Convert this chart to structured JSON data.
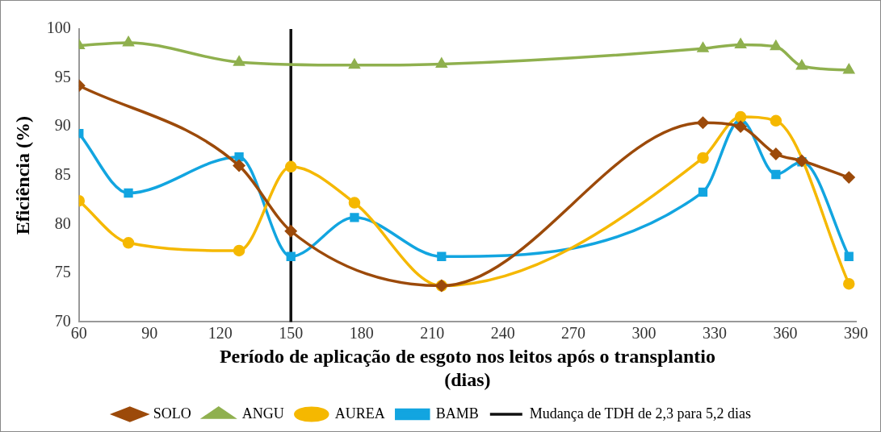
{
  "chart_data": {
    "type": "line",
    "xlabel": "Período de aplicação de esgoto nos leitos após o transplantio (dias)",
    "ylabel": "Eficiência (%)",
    "xlim": [
      60,
      390
    ],
    "xticks": [
      60,
      90,
      120,
      150,
      180,
      210,
      240,
      270,
      300,
      330,
      360,
      390
    ],
    "ylim": [
      70,
      100
    ],
    "yticks": [
      70,
      75,
      80,
      85,
      90,
      95,
      100
    ],
    "grid": false,
    "legend": "bottom",
    "series": [
      {
        "name": "SOLO",
        "color": "#9c4a0a",
        "marker": "diamond",
        "x": [
          60,
          128,
          150,
          214,
          325,
          341,
          356,
          367,
          387
        ],
        "values": [
          94.2,
          86.0,
          79.3,
          73.7,
          90.4,
          90.0,
          87.2,
          86.5,
          84.8
        ]
      },
      {
        "name": "ANGU",
        "color": "#8fb04e",
        "marker": "triangle",
        "x": [
          60,
          81,
          128,
          177,
          214,
          325,
          341,
          356,
          367,
          387
        ],
        "values": [
          98.3,
          98.6,
          96.6,
          96.3,
          96.4,
          98.0,
          98.4,
          98.2,
          96.2,
          95.8
        ]
      },
      {
        "name": "AUREA",
        "color": "#f5b800",
        "marker": "circle",
        "x": [
          60,
          81,
          128,
          150,
          177,
          214,
          325,
          341,
          356,
          367,
          387
        ],
        "values": [
          82.4,
          78.1,
          77.3,
          85.9,
          82.2,
          73.7,
          86.8,
          91.0,
          90.6,
          null,
          73.9
        ]
      },
      {
        "name": "BAMB",
        "color": "#12a5e0",
        "marker": "square",
        "x": [
          60,
          81,
          128,
          150,
          177,
          214,
          325,
          341,
          356,
          367,
          387
        ],
        "values": [
          89.3,
          83.2,
          86.9,
          76.7,
          80.7,
          76.7,
          83.3,
          90.7,
          85.1,
          86.4,
          76.7
        ]
      },
      {
        "name": "Mudança de TDH de 2,3 para 5,2 dias",
        "color": "#111111",
        "marker": "none",
        "x": [
          150,
          150
        ],
        "values": [
          70,
          100
        ]
      }
    ]
  }
}
